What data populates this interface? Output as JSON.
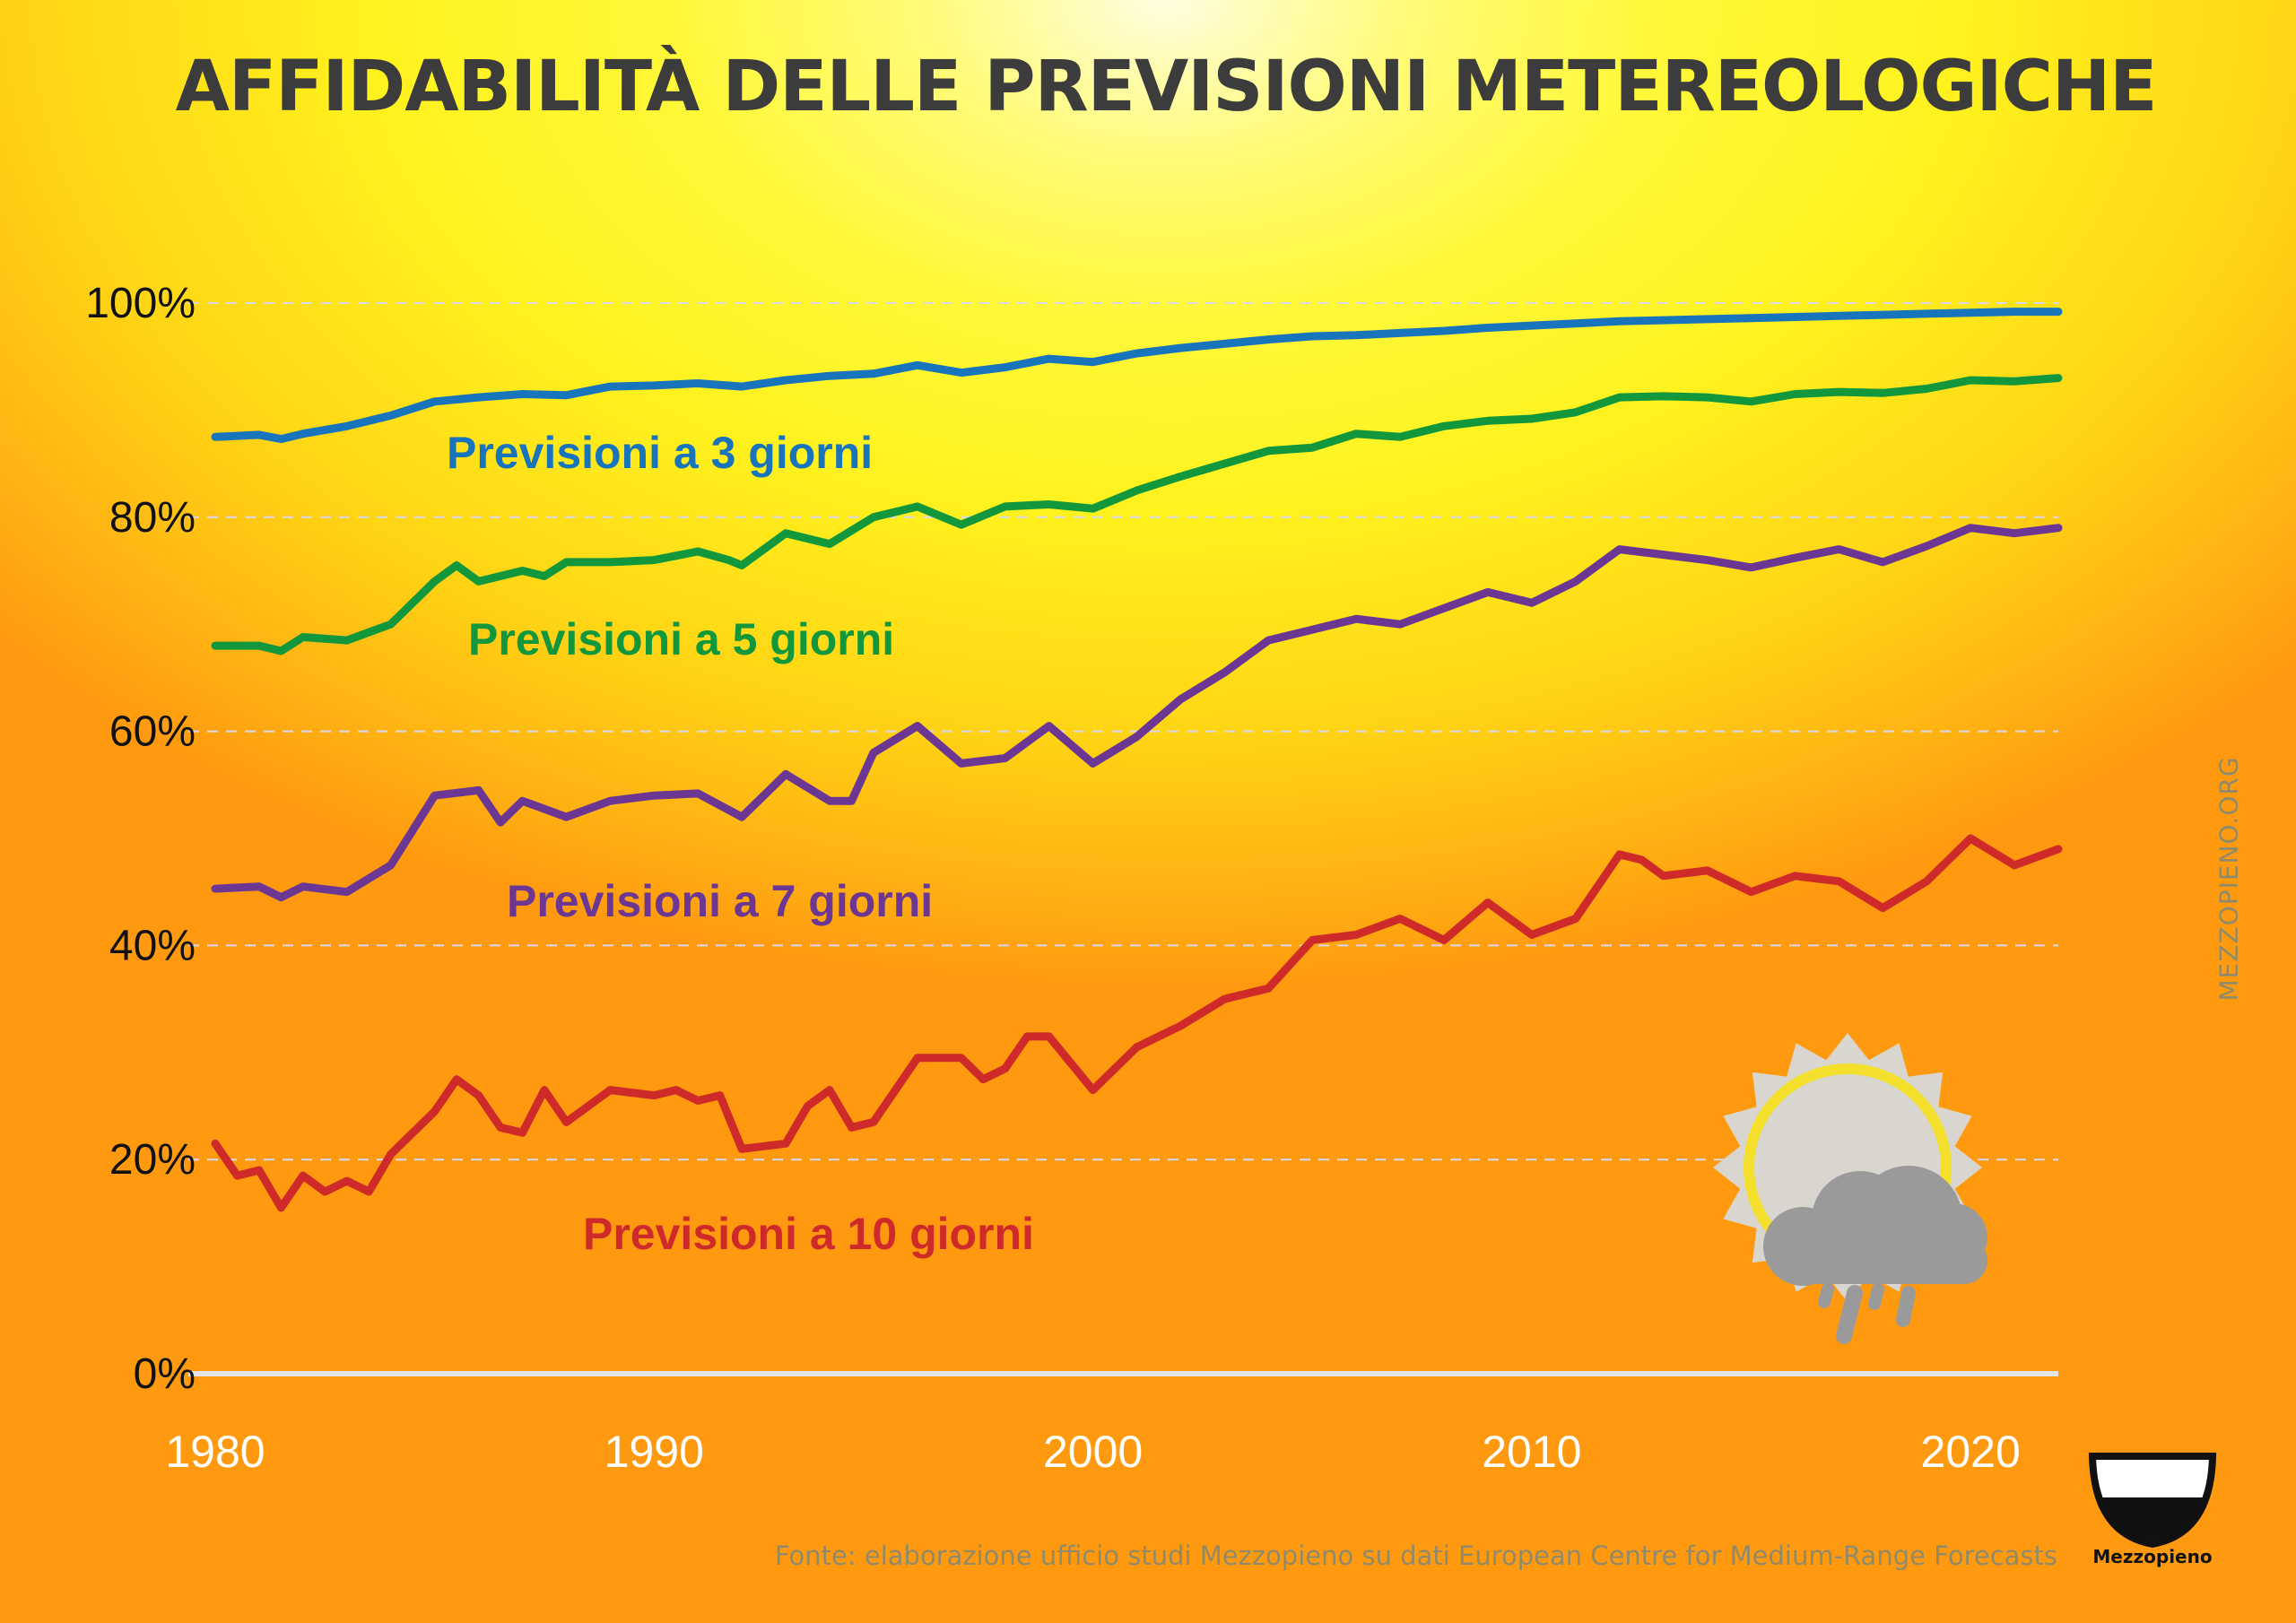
{
  "title": "AFFIDABILITÀ DELLE PREVISIONI METEREOLOGICHE",
  "source": "Fonte: elaborazione ufficio studi Mezzopieno su dati European Centre for Medium-Range Forecasts",
  "watermark": "MEZZOPIENO.ORG",
  "logo_text": "Mezzopieno",
  "icons": {
    "weather": "sun-cloud-rain-icon",
    "logo": "half-full-glass-icon"
  },
  "colors": {
    "three_day": "#1874bb",
    "five_day": "#12973d",
    "seven_day": "#6b3792",
    "ten_day": "#cf2a2a",
    "axis_tick_y": "#111111",
    "axis_tick_x": "#ffffff",
    "title": "#3c3c3c"
  },
  "chart_data": {
    "type": "line",
    "title": "AFFIDABILITÀ DELLE PREVISIONI METEREOLOGICHE",
    "xlabel": "",
    "ylabel": "",
    "xlim": [
      1980,
      2022
    ],
    "ylim": [
      0,
      100
    ],
    "grid": true,
    "legend": "inline labels",
    "x_ticks": [
      1980,
      1990,
      2000,
      2010,
      2020
    ],
    "x_tick_labels": [
      "1980",
      "1990",
      "2000",
      "2010",
      "2020"
    ],
    "y_ticks": [
      0,
      20,
      40,
      60,
      80,
      100
    ],
    "y_tick_labels": [
      "0%",
      "20%",
      "40%",
      "60%",
      "80%",
      "100%"
    ],
    "series": [
      {
        "name": "Previsioni a 3 giorni",
        "color": "#1874bb",
        "x": [
          1980,
          1981,
          1981.5,
          1982,
          1983,
          1984,
          1985,
          1986,
          1987,
          1988,
          1989,
          1990,
          1991,
          1992,
          1993,
          1994,
          1995,
          1996,
          1997,
          1998,
          1999,
          2000,
          2001,
          2002,
          2003,
          2004,
          2005,
          2006,
          2007,
          2008,
          2009,
          2010,
          2011,
          2012,
          2013,
          2014,
          2015,
          2016,
          2017,
          2018,
          2019,
          2020,
          2021,
          2022
        ],
        "values": [
          87.5,
          87.7,
          87.3,
          87.8,
          88.5,
          89.5,
          90.8,
          91.2,
          91.5,
          91.4,
          92.2,
          92.3,
          92.5,
          92.2,
          92.8,
          93.2,
          93.4,
          94.2,
          93.5,
          94.0,
          94.8,
          94.5,
          95.3,
          95.8,
          96.2,
          96.6,
          96.9,
          97.0,
          97.2,
          97.4,
          97.7,
          97.9,
          98.1,
          98.3,
          98.4,
          98.5,
          98.6,
          98.7,
          98.8,
          98.9,
          99.0,
          99.1,
          99.2,
          99.2
        ]
      },
      {
        "name": "Previsioni a 5 giorni",
        "color": "#12973d",
        "x": [
          1980,
          1981,
          1981.5,
          1982,
          1983,
          1984,
          1985,
          1985.5,
          1986,
          1987,
          1987.5,
          1988,
          1989,
          1990,
          1991,
          1991.7,
          1992,
          1993,
          1994,
          1995,
          1996,
          1997,
          1998,
          1999,
          2000,
          2001,
          2002,
          2003,
          2004,
          2005,
          2006,
          2007,
          2008,
          2009,
          2010,
          2011,
          2012,
          2013,
          2014,
          2015,
          2016,
          2017,
          2018,
          2019,
          2020,
          2021,
          2022
        ],
        "values": [
          68.0,
          68.0,
          67.5,
          68.8,
          68.5,
          70.0,
          74.0,
          75.5,
          74.0,
          75.0,
          74.5,
          75.8,
          75.8,
          76.0,
          76.8,
          76.0,
          75.5,
          78.5,
          77.5,
          80.0,
          81.0,
          79.3,
          81.0,
          81.2,
          80.8,
          82.5,
          83.8,
          85.0,
          86.2,
          86.5,
          87.8,
          87.5,
          88.5,
          89.0,
          89.2,
          89.8,
          91.2,
          91.3,
          91.2,
          90.8,
          91.5,
          91.7,
          91.6,
          92.0,
          92.8,
          92.7,
          93.0
        ]
      },
      {
        "name": "Previsioni a 7 giorni",
        "color": "#6b3792",
        "x": [
          1980,
          1981,
          1981.5,
          1982,
          1983,
          1984,
          1985,
          1986,
          1986.5,
          1987,
          1988,
          1989,
          1990,
          1991,
          1992,
          1993,
          1994,
          1994.5,
          1995,
          1996,
          1997,
          1998,
          1999,
          2000,
          2001,
          2002,
          2003,
          2004,
          2005,
          2006,
          2007,
          2008,
          2009,
          2010,
          2011,
          2012,
          2013,
          2014,
          2015,
          2016,
          2017,
          2018,
          2019,
          2020,
          2021,
          2022
        ],
        "values": [
          45.3,
          45.5,
          44.5,
          45.5,
          45.0,
          47.5,
          54.0,
          54.5,
          51.5,
          53.5,
          52.0,
          53.5,
          54.0,
          54.2,
          52.0,
          56.0,
          53.5,
          53.5,
          58.0,
          60.5,
          57.0,
          57.5,
          60.5,
          57.0,
          59.5,
          63.0,
          65.5,
          68.5,
          69.5,
          70.5,
          70.0,
          71.5,
          73.0,
          72.0,
          74.0,
          77.0,
          76.5,
          76.0,
          75.3,
          76.2,
          77.0,
          75.8,
          77.3,
          79.0,
          78.5,
          79.0
        ]
      },
      {
        "name": "Previsioni a 10 giorni",
        "color": "#cf2a2a",
        "x": [
          1980,
          1980.5,
          1981,
          1981.5,
          1982,
          1982.5,
          1983,
          1983.5,
          1984,
          1985,
          1985.5,
          1986,
          1986.5,
          1987,
          1987.5,
          1988,
          1989,
          1990,
          1990.5,
          1991,
          1991.5,
          1992,
          1993,
          1993.5,
          1994,
          1994.5,
          1995,
          1996,
          1997,
          1997.5,
          1998,
          1998.5,
          1999,
          2000,
          2000.5,
          2001,
          2002,
          2003,
          2004,
          2005,
          2006,
          2007,
          2008,
          2009,
          2010,
          2011,
          2012,
          2012.5,
          2013,
          2014,
          2015,
          2016,
          2017,
          2018,
          2019,
          2020,
          2021,
          2022
        ],
        "values": [
          21.5,
          18.5,
          19.0,
          15.5,
          18.5,
          17.0,
          18.0,
          17.0,
          20.5,
          24.5,
          27.5,
          26.0,
          23.0,
          22.5,
          26.5,
          23.5,
          26.5,
          26.0,
          26.5,
          25.5,
          26.0,
          21.0,
          21.5,
          25.0,
          26.5,
          23.0,
          23.5,
          29.5,
          29.5,
          27.5,
          28.5,
          31.5,
          31.5,
          26.5,
          28.5,
          30.5,
          32.5,
          35.0,
          36.0,
          40.5,
          41.0,
          42.5,
          40.5,
          44.0,
          41.0,
          42.5,
          48.5,
          48.0,
          46.5,
          47.0,
          45.0,
          46.5,
          46.0,
          43.5,
          46.0,
          50.0,
          47.5,
          49.0
        ]
      }
    ],
    "series_labels": [
      "Previsioni a 3 giorni",
      "Previsioni a 5 giorni",
      "Previsioni a 7 giorni",
      "Previsioni a 10 giorni"
    ]
  }
}
